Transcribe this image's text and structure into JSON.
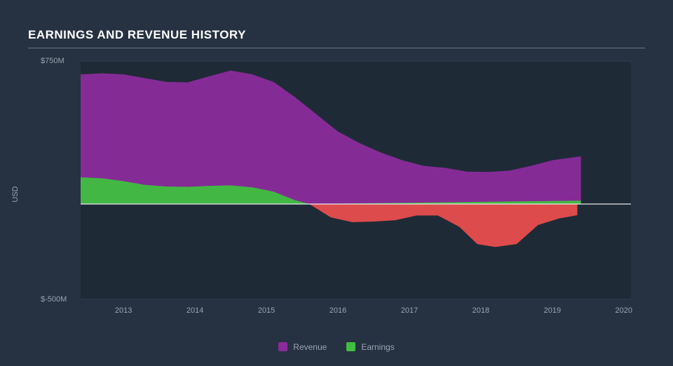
{
  "chart": {
    "type": "area",
    "title": "EARNINGS AND REVENUE HISTORY",
    "ylabel": "USD",
    "background_color": "#263241",
    "plot_bg": "#1f2a37",
    "grid_color": "#3a4755",
    "zero_line_color": "#e8eaec",
    "text_color": "#9aa4b0",
    "title_color": "#ffffff",
    "title_fontsize": 17,
    "tick_fontsize": 11,
    "x": {
      "min": 2012.4,
      "max": 2020.1,
      "ticks": [
        2013,
        2014,
        2015,
        2016,
        2017,
        2018,
        2019,
        2020
      ]
    },
    "y": {
      "min": -500,
      "max": 750,
      "ticks": [
        {
          "v": 750,
          "label": "$750M"
        },
        {
          "v": -500,
          "label": "$-500M"
        }
      ]
    },
    "legend": [
      {
        "label": "Revenue",
        "color": "#8b2b9b"
      },
      {
        "label": "Earnings",
        "color": "#3fbf3f"
      }
    ],
    "series": {
      "revenue": {
        "color": "#8b2b9b",
        "opacity": 0.95,
        "points": [
          [
            2012.4,
            680
          ],
          [
            2012.7,
            685
          ],
          [
            2013.0,
            680
          ],
          [
            2013.3,
            660
          ],
          [
            2013.6,
            640
          ],
          [
            2013.9,
            638
          ],
          [
            2014.2,
            670
          ],
          [
            2014.5,
            700
          ],
          [
            2014.8,
            680
          ],
          [
            2015.1,
            640
          ],
          [
            2015.4,
            560
          ],
          [
            2015.7,
            470
          ],
          [
            2016.0,
            380
          ],
          [
            2016.3,
            320
          ],
          [
            2016.6,
            270
          ],
          [
            2016.9,
            230
          ],
          [
            2017.2,
            200
          ],
          [
            2017.5,
            190
          ],
          [
            2017.8,
            170
          ],
          [
            2018.1,
            168
          ],
          [
            2018.4,
            175
          ],
          [
            2018.7,
            200
          ],
          [
            2019.0,
            230
          ],
          [
            2019.3,
            245
          ],
          [
            2019.4,
            250
          ]
        ]
      },
      "earnings": {
        "color_pos": "#3fbf3f",
        "color_neg": "#e84d4d",
        "opacity": 0.95,
        "points": [
          [
            2012.4,
            140
          ],
          [
            2012.7,
            135
          ],
          [
            2013.0,
            120
          ],
          [
            2013.3,
            100
          ],
          [
            2013.6,
            92
          ],
          [
            2013.9,
            90
          ],
          [
            2014.2,
            95
          ],
          [
            2014.5,
            98
          ],
          [
            2014.8,
            88
          ],
          [
            2015.1,
            65
          ],
          [
            2015.4,
            20
          ],
          [
            2015.6,
            0
          ],
          [
            2015.9,
            -70
          ],
          [
            2016.2,
            -95
          ],
          [
            2016.5,
            -92
          ],
          [
            2016.8,
            -85
          ],
          [
            2017.1,
            -60
          ],
          [
            2017.4,
            -60
          ],
          [
            2017.7,
            -120
          ],
          [
            2017.95,
            -210
          ],
          [
            2018.2,
            -225
          ],
          [
            2018.5,
            -210
          ],
          [
            2018.8,
            -110
          ],
          [
            2019.1,
            -75
          ],
          [
            2019.3,
            -62
          ],
          [
            2019.35,
            -58
          ],
          [
            2019.4,
            18
          ]
        ]
      }
    }
  }
}
